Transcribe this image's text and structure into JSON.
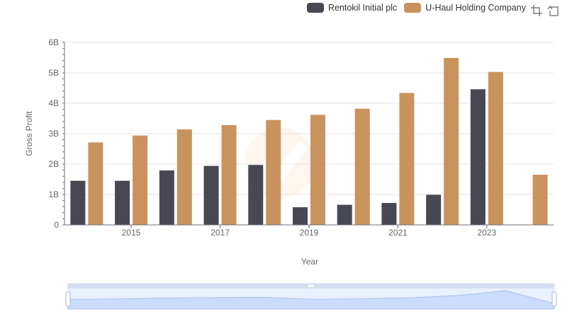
{
  "chart_data": {
    "type": "bar",
    "x": [
      "2014",
      "2015",
      "2016",
      "2017",
      "2018",
      "2019",
      "2020",
      "2021",
      "2022",
      "2023",
      "2024"
    ],
    "x_tick_labels": [
      "2015",
      "2017",
      "2019",
      "2021",
      "2023"
    ],
    "series": [
      {
        "name": "Rentokil Initial plc",
        "color": "#484855",
        "values": [
          1.45,
          1.45,
          1.79,
          1.94,
          1.97,
          0.58,
          0.66,
          0.72,
          0.99,
          4.46,
          null
        ]
      },
      {
        "name": "U-Haul Holding Company",
        "color": "#c9935e",
        "values": [
          2.71,
          2.94,
          3.14,
          3.28,
          3.45,
          3.62,
          3.82,
          4.34,
          5.49,
          5.03,
          1.65
        ]
      }
    ],
    "ylim": [
      0,
      6
    ],
    "y_ticks": [
      0,
      1,
      2,
      3,
      4,
      5,
      6
    ],
    "y_tick_labels": [
      "0",
      "1B",
      "2B",
      "3B",
      "4B",
      "5B",
      "6B"
    ],
    "xlabel": "Year",
    "ylabel": "Gross Profit",
    "grid": "horizontal",
    "legend_position": "top-right"
  },
  "toolbox": {
    "zoom_icon": "zoom-icon",
    "reset_icon": "reset-icon"
  }
}
